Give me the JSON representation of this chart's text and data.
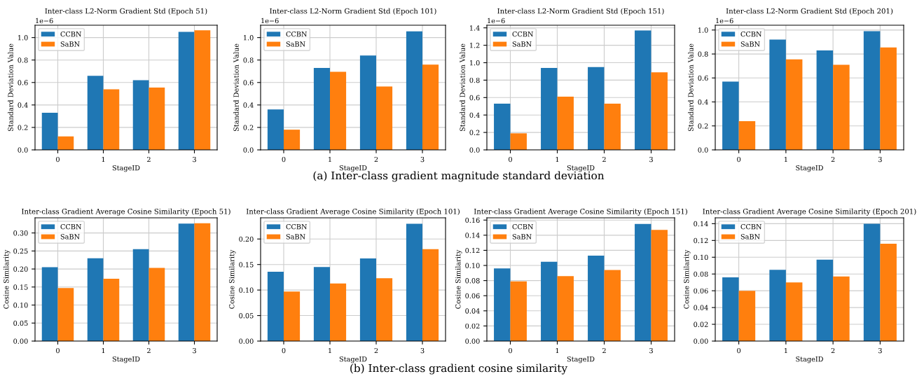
{
  "chart_data": [
    {
      "type": "bar",
      "title": "Inter-class L2-Norm Gradient Std (Epoch 51)",
      "xlabel": "StageID",
      "ylabel": "Standard Deviation Value",
      "annotations": [
        "1e−6"
      ],
      "categories": [
        "0",
        "1",
        "2",
        "3"
      ],
      "series": [
        {
          "name": "CCBN",
          "color": "#1f77b4",
          "values": [
            0.33,
            0.66,
            0.62,
            1.05
          ]
        },
        {
          "name": "SaBN",
          "color": "#ff7f0e",
          "values": [
            0.12,
            0.54,
            0.555,
            1.065
          ]
        }
      ],
      "ylim": [
        0,
        1.11
      ],
      "yticks": [
        {
          "value": 0,
          "label": "0.0"
        },
        0.2,
        0.4,
        0.6,
        0.8,
        {
          "value": 1,
          "label": "1.0"
        }
      ],
      "grid": true,
      "legend": "top left"
    },
    {
      "type": "bar",
      "title": "Inter-class L2-Norm Gradient Std (Epoch 101)",
      "xlabel": "StageID",
      "ylabel": "Standard Deviation Value",
      "subtitle": "(a) Inter-class gradient magnitude standard deviation",
      "annotations": [
        "1e−6"
      ],
      "categories": [
        "0",
        "1",
        "2",
        "3"
      ],
      "series": [
        {
          "name": "CCBN",
          "color": "#1f77b4",
          "values": [
            0.36,
            0.73,
            0.84,
            1.055
          ]
        },
        {
          "name": "SaBN",
          "color": "#ff7f0e",
          "values": [
            0.18,
            0.695,
            0.565,
            0.76
          ]
        }
      ],
      "ylim": [
        0,
        1.11
      ],
      "yticks": [
        {
          "value": 0,
          "label": "0.0"
        },
        0.2,
        0.4,
        0.6,
        0.8,
        {
          "value": 1,
          "label": "1.0"
        }
      ],
      "grid": true,
      "legend": "top left"
    },
    {
      "type": "bar",
      "title": "Inter-class L2-Norm Gradient Std (Epoch 151)",
      "xlabel": "StageID",
      "ylabel": "Standard Deviation Value",
      "annotations": [
        "1e−6"
      ],
      "categories": [
        "0",
        "1",
        "2",
        "3"
      ],
      "series": [
        {
          "name": "CCBN",
          "color": "#1f77b4",
          "values": [
            0.53,
            0.94,
            0.95,
            1.37
          ]
        },
        {
          "name": "SaBN",
          "color": "#ff7f0e",
          "values": [
            0.19,
            0.61,
            0.53,
            0.89
          ]
        }
      ],
      "ylim": [
        0,
        1.43
      ],
      "yticks": [
        {
          "value": 0,
          "label": "0.0"
        },
        0.2,
        0.4,
        0.6,
        0.8,
        {
          "value": 1,
          "label": "1.0"
        },
        1.2,
        1.4
      ],
      "grid": true,
      "legend": "top left"
    },
    {
      "type": "bar",
      "title": "Inter-class L2-Norm Gradient Std (Epoch 201)",
      "xlabel": "StageID",
      "ylabel": "Standard Deviation Value",
      "annotations": [
        "1e−6"
      ],
      "categories": [
        "0",
        "1",
        "2",
        "3"
      ],
      "series": [
        {
          "name": "CCBN",
          "color": "#1f77b4",
          "values": [
            0.57,
            0.92,
            0.83,
            0.99
          ]
        },
        {
          "name": "SaBN",
          "color": "#ff7f0e",
          "values": [
            0.24,
            0.755,
            0.71,
            0.855
          ]
        }
      ],
      "ylim": [
        0,
        1.04
      ],
      "yticks": [
        {
          "value": 0,
          "label": "0.0"
        },
        0.2,
        0.4,
        0.6,
        0.8,
        {
          "value": 1,
          "label": "1.0"
        }
      ],
      "grid": true,
      "legend": "top left"
    },
    {
      "type": "bar",
      "title": "Inter-class Gradient Average Cosine Similarity (Epoch 51)",
      "xlabel": "StageID",
      "ylabel": "Cosine Similarity",
      "categories": [
        "0",
        "1",
        "2",
        "3"
      ],
      "series": [
        {
          "name": "CCBN",
          "color": "#1f77b4",
          "values": [
            0.205,
            0.23,
            0.255,
            0.326
          ]
        },
        {
          "name": "SaBN",
          "color": "#ff7f0e",
          "values": [
            0.147,
            0.173,
            0.203,
            0.327
          ]
        }
      ],
      "ylim": [
        0,
        0.342
      ],
      "yticks": [
        {
          "value": 0,
          "label": "0.00"
        },
        0.05,
        {
          "value": 0.1,
          "label": "0.10"
        },
        0.15,
        {
          "value": 0.2,
          "label": "0.20"
        },
        0.25,
        {
          "value": 0.3,
          "label": "0.30"
        }
      ],
      "grid": true,
      "legend": "top left"
    },
    {
      "type": "bar",
      "title": "Inter-class Gradient Average Cosine Similarity (Epoch 101)",
      "xlabel": "StageID",
      "ylabel": "Cosine Similarity",
      "subtitle": "(b) Inter-class gradient cosine similarity",
      "categories": [
        "0",
        "1",
        "2",
        "3"
      ],
      "series": [
        {
          "name": "CCBN",
          "color": "#1f77b4",
          "values": [
            0.136,
            0.145,
            0.162,
            0.23
          ]
        },
        {
          "name": "SaBN",
          "color": "#ff7f0e",
          "values": [
            0.097,
            0.113,
            0.123,
            0.18
          ]
        }
      ],
      "ylim": [
        0,
        0.2415
      ],
      "yticks": [
        {
          "value": 0,
          "label": "0.00"
        },
        0.05,
        {
          "value": 0.1,
          "label": "0.10"
        },
        0.15,
        {
          "value": 0.2,
          "label": "0.20"
        }
      ],
      "grid": true,
      "legend": "top left"
    },
    {
      "type": "bar",
      "title": "Inter-class Gradient Average Cosine Similarity (Epoch 151)",
      "xlabel": "StageID",
      "ylabel": "Cosine Similarity",
      "categories": [
        "0",
        "1",
        "2",
        "3"
      ],
      "series": [
        {
          "name": "CCBN",
          "color": "#1f77b4",
          "values": [
            0.096,
            0.105,
            0.113,
            0.155
          ]
        },
        {
          "name": "SaBN",
          "color": "#ff7f0e",
          "values": [
            0.079,
            0.086,
            0.094,
            0.147
          ]
        }
      ],
      "ylim": [
        0,
        0.163
      ],
      "yticks": [
        {
          "value": 0,
          "label": "0.00"
        },
        0.02,
        0.04,
        0.06,
        0.08,
        {
          "value": 0.1,
          "label": "0.10"
        },
        0.12,
        0.14,
        0.16
      ],
      "grid": true,
      "legend": "top left"
    },
    {
      "type": "bar",
      "title": "Inter-class Gradient Average Cosine Similarity (Epoch 201)",
      "xlabel": "StageID",
      "ylabel": "Cosine Similarity",
      "categories": [
        "0",
        "1",
        "2",
        "3"
      ],
      "series": [
        {
          "name": "CCBN",
          "color": "#1f77b4",
          "values": [
            0.076,
            0.085,
            0.097,
            0.14
          ]
        },
        {
          "name": "SaBN",
          "color": "#ff7f0e",
          "values": [
            0.06,
            0.07,
            0.077,
            0.116
          ]
        }
      ],
      "ylim": [
        0,
        0.147
      ],
      "yticks": [
        {
          "value": 0,
          "label": "0.00"
        },
        0.02,
        0.04,
        0.06,
        0.08,
        {
          "value": 0.1,
          "label": "0.10"
        },
        0.12,
        0.14
      ],
      "grid": true,
      "legend": "top left"
    }
  ]
}
